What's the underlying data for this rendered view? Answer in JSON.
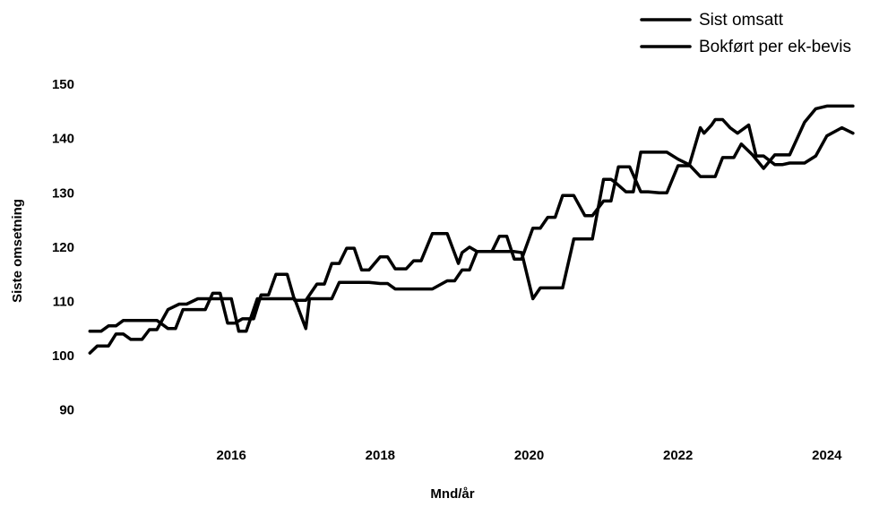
{
  "chart_data": {
    "type": "line",
    "title": "",
    "xlabel": "Mnd/år",
    "ylabel": "Siste omsetning",
    "xlim": [
      2014.0,
      2024.7
    ],
    "ylim": [
      85,
      152
    ],
    "x_ticks": [
      2016,
      2018,
      2020,
      2022,
      2024
    ],
    "y_ticks": [
      90,
      100,
      110,
      120,
      130,
      140,
      150
    ],
    "grid": false,
    "legend_position": "top-right",
    "colors": {
      "line": "#000000",
      "background": "#ffffff"
    },
    "series": [
      {
        "name": "Sist omsatt",
        "x": [
          2014.1,
          2014.25,
          2014.35,
          2014.45,
          2014.55,
          2014.65,
          2014.85,
          2015.0,
          2015.15,
          2015.25,
          2015.35,
          2015.55,
          2015.65,
          2015.75,
          2015.85,
          2015.95,
          2016.05,
          2016.15,
          2016.3,
          2016.4,
          2016.5,
          2016.6,
          2016.75,
          2016.85,
          2017.0,
          2017.15,
          2017.25,
          2017.35,
          2017.45,
          2017.55,
          2017.65,
          2017.75,
          2017.85,
          2018.0,
          2018.1,
          2018.2,
          2018.35,
          2018.45,
          2018.55,
          2018.7,
          2018.9,
          2019.05,
          2019.1,
          2019.2,
          2019.3,
          2019.4,
          2019.5,
          2019.6,
          2019.7,
          2019.8,
          2019.9,
          2020.05,
          2020.15,
          2020.25,
          2020.35,
          2020.45,
          2020.6,
          2020.75,
          2020.85,
          2021.0,
          2021.1,
          2021.2,
          2021.35,
          2021.5,
          2021.6,
          2021.75,
          2021.85,
          2022.0,
          2022.15,
          2022.3,
          2022.35,
          2022.45,
          2022.5,
          2022.6,
          2022.7,
          2022.8,
          2022.85,
          2022.95,
          2023.05,
          2023.15,
          2023.3,
          2023.4,
          2023.5,
          2023.7,
          2023.85,
          2024.0,
          2024.2,
          2024.35
        ],
        "y": [
          104.5,
          104.5,
          105.5,
          105.5,
          106.5,
          106.5,
          106.5,
          106.5,
          105,
          105,
          108.5,
          108.5,
          108.5,
          111.5,
          111.5,
          106,
          106,
          106.8,
          106.8,
          111.2,
          111.2,
          115,
          115,
          110.2,
          110.2,
          113.2,
          113.2,
          117,
          117,
          119.8,
          119.8,
          115.8,
          115.8,
          118.2,
          118.2,
          116,
          116,
          117.5,
          117.5,
          122.5,
          122.5,
          117,
          119,
          120,
          119.2,
          119.2,
          119.2,
          122,
          122,
          117.8,
          117.8,
          123.5,
          123.5,
          125.5,
          125.5,
          129.5,
          129.5,
          125.8,
          125.8,
          128.5,
          128.5,
          134.8,
          134.8,
          130.2,
          130.2,
          130,
          130,
          135,
          135,
          142,
          141,
          142.5,
          143.5,
          143.5,
          142,
          141,
          141.5,
          142.5,
          136.8,
          136.8,
          135.2,
          135.2,
          135.5,
          135.5,
          136.8,
          140.5,
          142,
          141
        ]
      },
      {
        "name": "Bokført per ek-bevis",
        "x": [
          2014.1,
          2014.2,
          2014.35,
          2014.45,
          2014.55,
          2014.65,
          2014.8,
          2014.9,
          2015.0,
          2015.15,
          2015.3,
          2015.4,
          2015.55,
          2015.65,
          2015.75,
          2015.85,
          2016.0,
          2016.1,
          2016.2,
          2016.35,
          2016.45,
          2016.5,
          2016.6,
          2016.75,
          2016.85,
          2017.0,
          2017.05,
          2017.15,
          2017.25,
          2017.35,
          2017.45,
          2017.55,
          2017.65,
          2017.75,
          2017.85,
          2018.0,
          2018.1,
          2018.2,
          2018.35,
          2018.5,
          2018.7,
          2018.9,
          2019.0,
          2019.1,
          2019.2,
          2019.3,
          2019.4,
          2019.5,
          2019.6,
          2019.7,
          2019.8,
          2019.9,
          2020.05,
          2020.15,
          2020.2,
          2020.35,
          2020.45,
          2020.6,
          2020.75,
          2020.85,
          2021.0,
          2021.1,
          2021.15,
          2021.3,
          2021.4,
          2021.5,
          2021.65,
          2021.75,
          2021.85,
          2022.0,
          2022.15,
          2022.3,
          2022.5,
          2022.6,
          2022.75,
          2022.85,
          2023.0,
          2023.15,
          2023.3,
          2023.5,
          2023.7,
          2023.85,
          2024.0,
          2024.1,
          2024.35
        ],
        "y": [
          100.5,
          101.8,
          101.8,
          104,
          104,
          103,
          103,
          104.8,
          104.8,
          108.5,
          109.5,
          109.5,
          110.5,
          110.5,
          110.5,
          110.5,
          110.5,
          104.5,
          104.5,
          110.5,
          110.5,
          110.5,
          110.5,
          110.5,
          110.5,
          105,
          110.5,
          110.5,
          110.5,
          110.5,
          113.5,
          113.5,
          113.5,
          113.5,
          113.5,
          113.3,
          113.3,
          112.3,
          112.3,
          112.3,
          112.3,
          113.8,
          113.8,
          115.8,
          115.8,
          119.2,
          119.2,
          119.2,
          119.2,
          119.2,
          119.2,
          119,
          110.5,
          112.5,
          112.5,
          112.5,
          112.5,
          121.5,
          121.5,
          121.5,
          132.5,
          132.5,
          132,
          130.2,
          130.2,
          137.5,
          137.5,
          137.5,
          137.5,
          136.2,
          135.2,
          133,
          133,
          136.5,
          136.5,
          139,
          137,
          134.5,
          137,
          137,
          143,
          145.5,
          146,
          146,
          146
        ]
      }
    ]
  }
}
